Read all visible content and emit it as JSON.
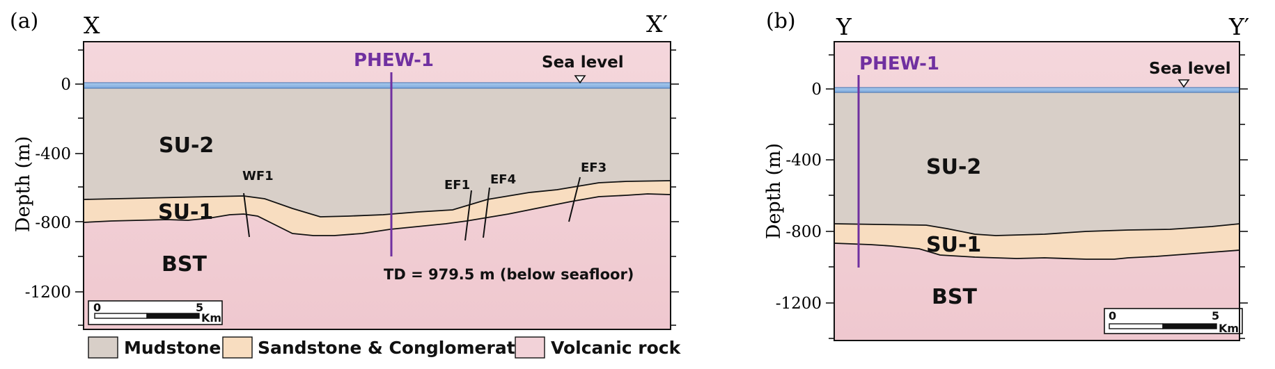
{
  "panel_a": {
    "letter": "(a)",
    "left_end": "X",
    "right_end": "X′",
    "y_axis_title": "Depth (m)",
    "y_ticks": [
      "0",
      "-400",
      "-800",
      "-1200"
    ],
    "well_label": "PHEW-1",
    "sea_level_label": "Sea level",
    "units": {
      "upper": "SU-2",
      "middle": "SU-1",
      "basement": "BST"
    },
    "faults": [
      "WF1",
      "EF1",
      "EF4",
      "EF3"
    ],
    "td_label": "TD = 979.5 m (below seafloor)",
    "scale": {
      "start": "0",
      "end": "5",
      "unit": "Km"
    }
  },
  "panel_b": {
    "letter": "(b)",
    "left_end": "Y",
    "right_end": "Y′",
    "y_axis_title": "Depth (m)",
    "y_ticks": [
      "0",
      "-400",
      "-800",
      "-1200"
    ],
    "well_label": "PHEW-1",
    "sea_level_label": "Sea level",
    "units": {
      "upper": "SU-2",
      "middle": "SU-1",
      "basement": "BST"
    },
    "scale": {
      "start": "0",
      "end": "5",
      "unit": "Km"
    }
  },
  "legend": {
    "mudstone": "Mudstone",
    "sandstone": "Sandstone & Conglomerate",
    "volcanic": "Volcanic rock"
  },
  "colors": {
    "sea": "#8fb8e6",
    "mudstone": "#d8cfc8",
    "sandstone": "#f8ddc0",
    "volcanic": "#f2d2d8",
    "well": "#7030a0"
  }
}
